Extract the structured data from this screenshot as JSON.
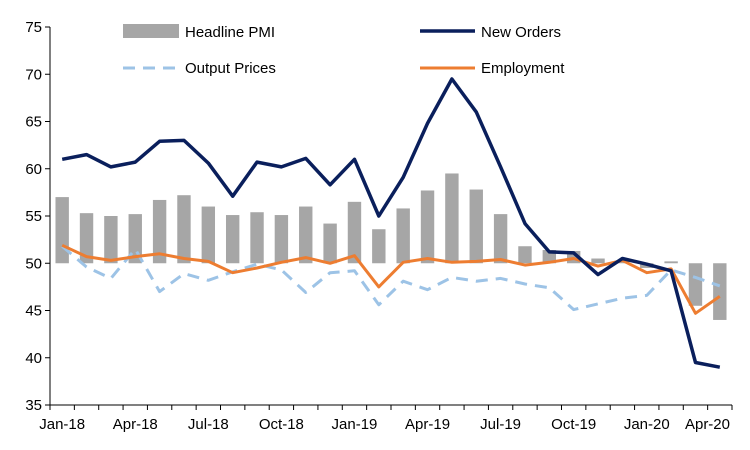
{
  "chart_data": {
    "type": "bar+line",
    "categories": [
      "Jan-18",
      "Feb-18",
      "Mar-18",
      "Apr-18",
      "May-18",
      "Jun-18",
      "Jul-18",
      "Aug-18",
      "Sep-18",
      "Oct-18",
      "Nov-18",
      "Dec-18",
      "Jan-19",
      "Feb-19",
      "Mar-19",
      "Apr-19",
      "May-19",
      "Jun-19",
      "Jul-19",
      "Aug-19",
      "Sep-19",
      "Oct-19",
      "Nov-19",
      "Dec-19",
      "Jan-20",
      "Feb-20",
      "Mar-20",
      "Apr-20"
    ],
    "x_tick_labels": [
      "Jan-18",
      "Apr-18",
      "Jul-18",
      "Oct-18",
      "Jan-19",
      "Apr-19",
      "Jul-19",
      "Oct-19",
      "Jan-20",
      "Apr-20"
    ],
    "ylim": [
      35,
      75
    ],
    "y_ticks": [
      35,
      40,
      45,
      50,
      55,
      60,
      65,
      70,
      75
    ],
    "bar_baseline": 50,
    "grid": false,
    "legend_placement": "top",
    "series": [
      {
        "name": "Headline PMI",
        "kind": "bar",
        "color": "#a6a6a6",
        "values": [
          57.0,
          55.3,
          55.0,
          55.2,
          56.7,
          57.2,
          56.0,
          55.1,
          55.4,
          55.1,
          56.0,
          54.2,
          56.5,
          53.6,
          55.8,
          57.7,
          59.5,
          57.8,
          55.2,
          51.8,
          51.4,
          51.3,
          50.5,
          50.2,
          49.5,
          50.2,
          45.5,
          44.0
        ]
      },
      {
        "name": "New Orders",
        "kind": "line",
        "color": "#0a1f5c",
        "dash": "solid",
        "values": [
          61.0,
          61.5,
          60.2,
          60.7,
          62.9,
          63.0,
          60.6,
          57.1,
          60.7,
          60.2,
          61.1,
          58.3,
          61.0,
          55.0,
          59.1,
          64.8,
          69.5,
          66.0,
          60.2,
          54.2,
          51.2,
          51.1,
          48.8,
          50.5,
          49.9,
          49.2,
          39.5,
          39.0
        ]
      },
      {
        "name": "Output Prices",
        "kind": "line",
        "color": "#9dc3e6",
        "dash": "dashed",
        "values": [
          51.8,
          49.6,
          48.4,
          51.5,
          47.0,
          48.9,
          48.2,
          49.1,
          49.9,
          49.3,
          46.9,
          49.0,
          49.2,
          45.6,
          48.1,
          47.2,
          48.5,
          48.1,
          48.4,
          47.8,
          47.4,
          45.1,
          45.7,
          46.3,
          46.6,
          49.3,
          48.5,
          47.6
        ]
      },
      {
        "name": "Employment",
        "kind": "line",
        "color": "#ed7d31",
        "dash": "solid",
        "values": [
          51.9,
          50.7,
          50.3,
          50.7,
          51.0,
          50.5,
          50.2,
          49.0,
          49.5,
          50.1,
          50.6,
          50.0,
          50.8,
          47.5,
          50.1,
          50.5,
          50.1,
          50.2,
          50.4,
          49.8,
          50.1,
          50.5,
          49.7,
          50.3,
          49.0,
          49.4,
          44.7,
          46.5
        ]
      }
    ]
  }
}
